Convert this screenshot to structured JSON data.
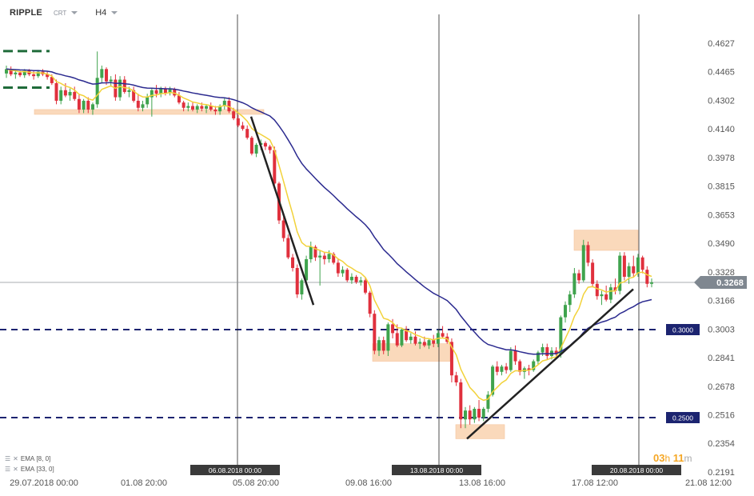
{
  "header": {
    "symbol": "RIPPLE",
    "source": "CRT",
    "timeframe": "H4"
  },
  "indicators": [
    {
      "label": "EMA",
      "params": "[8, 0]"
    },
    {
      "label": "EMA",
      "params": "[33, 0]"
    }
  ],
  "timer": {
    "hours": "03",
    "h": "h",
    "minutes": "11",
    "m": "m"
  },
  "colors": {
    "bull": "#3fa34d",
    "bear": "#e0303d",
    "ema_fast": "#f2d23a",
    "ema_slow": "#2b2a8f",
    "level_line": "#1c2470",
    "zone": "#fad3b0",
    "trendline": "#222222",
    "price_tag": "#7f8790"
  },
  "chart_data": {
    "type": "candlestick",
    "symbol": "RIPPLE",
    "timeframe": "H4",
    "y_ticks": [
      0.4627,
      0.4465,
      0.4302,
      0.414,
      0.3978,
      0.3815,
      0.3653,
      0.349,
      0.3328,
      0.3166,
      0.3003,
      0.2841,
      0.2678,
      0.2516,
      0.2354,
      0.2191
    ],
    "ylim": [
      0.2191,
      0.4627
    ],
    "x_tick_labels": [
      "29.07.2018  00:00",
      "01.08  20:00",
      "05.08  20:00",
      "09.08  16:00",
      "13.08  16:00",
      "17.08  12:00",
      "21.08  12:00"
    ],
    "vertical_markers": [
      "06.08.2018 00:00",
      "13.08.2018 00:00",
      "20.08.2018 00:00"
    ],
    "current_price": 0.3268,
    "horizontal_levels": [
      {
        "label": "0.3000",
        "value": 0.3
      },
      {
        "label": "0.2500",
        "value": 0.25
      }
    ],
    "guide_levels": [
      0.4582,
      0.4375
    ],
    "support_resistance_zones": [
      {
        "low": 0.4225,
        "high": 0.425
      },
      {
        "low": 0.282,
        "high": 0.292
      },
      {
        "low": 0.238,
        "high": 0.246
      },
      {
        "low": 0.345,
        "high": 0.3565
      }
    ],
    "trendlines": [
      {
        "from": 0.421,
        "to": 0.314
      },
      {
        "from": 0.238,
        "to": 0.323
      }
    ],
    "candles": [
      {
        "o": 0.4455,
        "h": 0.45,
        "l": 0.443,
        "c": 0.448
      },
      {
        "o": 0.448,
        "h": 0.4495,
        "l": 0.444,
        "c": 0.445
      },
      {
        "o": 0.445,
        "h": 0.4475,
        "l": 0.4425,
        "c": 0.446
      },
      {
        "o": 0.446,
        "h": 0.447,
        "l": 0.4435,
        "c": 0.4445
      },
      {
        "o": 0.4445,
        "h": 0.448,
        "l": 0.443,
        "c": 0.447
      },
      {
        "o": 0.447,
        "h": 0.448,
        "l": 0.444,
        "c": 0.445
      },
      {
        "o": 0.445,
        "h": 0.447,
        "l": 0.442,
        "c": 0.444
      },
      {
        "o": 0.444,
        "h": 0.4475,
        "l": 0.443,
        "c": 0.4465
      },
      {
        "o": 0.4465,
        "h": 0.448,
        "l": 0.444,
        "c": 0.445
      },
      {
        "o": 0.445,
        "h": 0.4465,
        "l": 0.442,
        "c": 0.4435
      },
      {
        "o": 0.4435,
        "h": 0.445,
        "l": 0.439,
        "c": 0.44
      },
      {
        "o": 0.44,
        "h": 0.442,
        "l": 0.428,
        "c": 0.43
      },
      {
        "o": 0.43,
        "h": 0.438,
        "l": 0.428,
        "c": 0.436
      },
      {
        "o": 0.436,
        "h": 0.44,
        "l": 0.432,
        "c": 0.433
      },
      {
        "o": 0.433,
        "h": 0.437,
        "l": 0.43,
        "c": 0.435
      },
      {
        "o": 0.435,
        "h": 0.438,
        "l": 0.43,
        "c": 0.431
      },
      {
        "o": 0.431,
        "h": 0.434,
        "l": 0.423,
        "c": 0.425
      },
      {
        "o": 0.425,
        "h": 0.431,
        "l": 0.423,
        "c": 0.43
      },
      {
        "o": 0.43,
        "h": 0.432,
        "l": 0.423,
        "c": 0.425
      },
      {
        "o": 0.425,
        "h": 0.429,
        "l": 0.422,
        "c": 0.428
      },
      {
        "o": 0.428,
        "h": 0.458,
        "l": 0.426,
        "c": 0.443
      },
      {
        "o": 0.443,
        "h": 0.45,
        "l": 0.44,
        "c": 0.448
      },
      {
        "o": 0.448,
        "h": 0.449,
        "l": 0.439,
        "c": 0.441
      },
      {
        "o": 0.441,
        "h": 0.444,
        "l": 0.438,
        "c": 0.442
      },
      {
        "o": 0.442,
        "h": 0.445,
        "l": 0.43,
        "c": 0.432
      },
      {
        "o": 0.432,
        "h": 0.444,
        "l": 0.43,
        "c": 0.442
      },
      {
        "o": 0.442,
        "h": 0.444,
        "l": 0.434,
        "c": 0.435
      },
      {
        "o": 0.435,
        "h": 0.438,
        "l": 0.432,
        "c": 0.436
      },
      {
        "o": 0.436,
        "h": 0.438,
        "l": 0.429,
        "c": 0.43
      },
      {
        "o": 0.43,
        "h": 0.434,
        "l": 0.424,
        "c": 0.426
      },
      {
        "o": 0.426,
        "h": 0.43,
        "l": 0.424,
        "c": 0.428
      },
      {
        "o": 0.428,
        "h": 0.434,
        "l": 0.426,
        "c": 0.432
      },
      {
        "o": 0.432,
        "h": 0.437,
        "l": 0.421,
        "c": 0.436
      },
      {
        "o": 0.436,
        "h": 0.439,
        "l": 0.432,
        "c": 0.434
      },
      {
        "o": 0.434,
        "h": 0.438,
        "l": 0.432,
        "c": 0.437
      },
      {
        "o": 0.437,
        "h": 0.438,
        "l": 0.433,
        "c": 0.4345
      },
      {
        "o": 0.4345,
        "h": 0.438,
        "l": 0.433,
        "c": 0.4365
      },
      {
        "o": 0.4365,
        "h": 0.4375,
        "l": 0.432,
        "c": 0.433
      },
      {
        "o": 0.433,
        "h": 0.435,
        "l": 0.428,
        "c": 0.429
      },
      {
        "o": 0.429,
        "h": 0.43,
        "l": 0.424,
        "c": 0.426
      },
      {
        "o": 0.426,
        "h": 0.429,
        "l": 0.424,
        "c": 0.427
      },
      {
        "o": 0.427,
        "h": 0.429,
        "l": 0.424,
        "c": 0.425
      },
      {
        "o": 0.425,
        "h": 0.428,
        "l": 0.423,
        "c": 0.427
      },
      {
        "o": 0.427,
        "h": 0.429,
        "l": 0.424,
        "c": 0.4255
      },
      {
        "o": 0.4255,
        "h": 0.428,
        "l": 0.423,
        "c": 0.427
      },
      {
        "o": 0.427,
        "h": 0.429,
        "l": 0.424,
        "c": 0.425
      },
      {
        "o": 0.425,
        "h": 0.427,
        "l": 0.422,
        "c": 0.424
      },
      {
        "o": 0.424,
        "h": 0.428,
        "l": 0.422,
        "c": 0.427
      },
      {
        "o": 0.427,
        "h": 0.432,
        "l": 0.425,
        "c": 0.43
      },
      {
        "o": 0.43,
        "h": 0.432,
        "l": 0.423,
        "c": 0.424
      },
      {
        "o": 0.424,
        "h": 0.426,
        "l": 0.419,
        "c": 0.42
      },
      {
        "o": 0.42,
        "h": 0.422,
        "l": 0.415,
        "c": 0.416
      },
      {
        "o": 0.416,
        "h": 0.418,
        "l": 0.413,
        "c": 0.414
      },
      {
        "o": 0.414,
        "h": 0.416,
        "l": 0.408,
        "c": 0.409
      },
      {
        "o": 0.409,
        "h": 0.41,
        "l": 0.399,
        "c": 0.4
      },
      {
        "o": 0.4,
        "h": 0.406,
        "l": 0.398,
        "c": 0.405
      },
      {
        "o": 0.405,
        "h": 0.408,
        "l": 0.402,
        "c": 0.406
      },
      {
        "o": 0.406,
        "h": 0.407,
        "l": 0.402,
        "c": 0.404
      },
      {
        "o": 0.404,
        "h": 0.405,
        "l": 0.4,
        "c": 0.402
      },
      {
        "o": 0.402,
        "h": 0.404,
        "l": 0.382,
        "c": 0.383
      },
      {
        "o": 0.383,
        "h": 0.384,
        "l": 0.36,
        "c": 0.362
      },
      {
        "o": 0.362,
        "h": 0.365,
        "l": 0.35,
        "c": 0.352
      },
      {
        "o": 0.352,
        "h": 0.354,
        "l": 0.34,
        "c": 0.341
      },
      {
        "o": 0.341,
        "h": 0.343,
        "l": 0.333,
        "c": 0.335
      },
      {
        "o": 0.335,
        "h": 0.337,
        "l": 0.318,
        "c": 0.32
      },
      {
        "o": 0.32,
        "h": 0.329,
        "l": 0.317,
        "c": 0.328
      },
      {
        "o": 0.328,
        "h": 0.342,
        "l": 0.326,
        "c": 0.34
      },
      {
        "o": 0.34,
        "h": 0.35,
        "l": 0.338,
        "c": 0.347
      },
      {
        "o": 0.347,
        "h": 0.348,
        "l": 0.339,
        "c": 0.341
      },
      {
        "o": 0.341,
        "h": 0.345,
        "l": 0.325,
        "c": 0.342
      },
      {
        "o": 0.342,
        "h": 0.344,
        "l": 0.337,
        "c": 0.34
      },
      {
        "o": 0.34,
        "h": 0.345,
        "l": 0.338,
        "c": 0.343
      },
      {
        "o": 0.343,
        "h": 0.344,
        "l": 0.337,
        "c": 0.338
      },
      {
        "o": 0.338,
        "h": 0.34,
        "l": 0.33,
        "c": 0.332
      },
      {
        "o": 0.332,
        "h": 0.336,
        "l": 0.33,
        "c": 0.334
      },
      {
        "o": 0.334,
        "h": 0.335,
        "l": 0.327,
        "c": 0.328
      },
      {
        "o": 0.328,
        "h": 0.332,
        "l": 0.326,
        "c": 0.33
      },
      {
        "o": 0.33,
        "h": 0.331,
        "l": 0.326,
        "c": 0.327
      },
      {
        "o": 0.327,
        "h": 0.33,
        "l": 0.325,
        "c": 0.328
      },
      {
        "o": 0.328,
        "h": 0.33,
        "l": 0.32,
        "c": 0.321
      },
      {
        "o": 0.321,
        "h": 0.322,
        "l": 0.307,
        "c": 0.309
      },
      {
        "o": 0.309,
        "h": 0.311,
        "l": 0.286,
        "c": 0.288
      },
      {
        "o": 0.288,
        "h": 0.296,
        "l": 0.285,
        "c": 0.294
      },
      {
        "o": 0.294,
        "h": 0.296,
        "l": 0.286,
        "c": 0.288
      },
      {
        "o": 0.288,
        "h": 0.304,
        "l": 0.285,
        "c": 0.303
      },
      {
        "o": 0.303,
        "h": 0.306,
        "l": 0.295,
        "c": 0.298
      },
      {
        "o": 0.298,
        "h": 0.303,
        "l": 0.29,
        "c": 0.291
      },
      {
        "o": 0.291,
        "h": 0.301,
        "l": 0.29,
        "c": 0.3
      },
      {
        "o": 0.3,
        "h": 0.302,
        "l": 0.293,
        "c": 0.294
      },
      {
        "o": 0.294,
        "h": 0.298,
        "l": 0.292,
        "c": 0.296
      },
      {
        "o": 0.296,
        "h": 0.299,
        "l": 0.291,
        "c": 0.292
      },
      {
        "o": 0.292,
        "h": 0.295,
        "l": 0.289,
        "c": 0.293
      },
      {
        "o": 0.293,
        "h": 0.296,
        "l": 0.29,
        "c": 0.291
      },
      {
        "o": 0.291,
        "h": 0.295,
        "l": 0.289,
        "c": 0.294
      },
      {
        "o": 0.294,
        "h": 0.297,
        "l": 0.29,
        "c": 0.292
      },
      {
        "o": 0.292,
        "h": 0.3,
        "l": 0.29,
        "c": 0.298
      },
      {
        "o": 0.298,
        "h": 0.302,
        "l": 0.295,
        "c": 0.296
      },
      {
        "o": 0.296,
        "h": 0.298,
        "l": 0.292,
        "c": 0.293
      },
      {
        "o": 0.293,
        "h": 0.295,
        "l": 0.27,
        "c": 0.274
      },
      {
        "o": 0.274,
        "h": 0.276,
        "l": 0.268,
        "c": 0.27
      },
      {
        "o": 0.27,
        "h": 0.272,
        "l": 0.244,
        "c": 0.249
      },
      {
        "o": 0.249,
        "h": 0.256,
        "l": 0.244,
        "c": 0.254
      },
      {
        "o": 0.254,
        "h": 0.257,
        "l": 0.246,
        "c": 0.249
      },
      {
        "o": 0.249,
        "h": 0.256,
        "l": 0.247,
        "c": 0.255
      },
      {
        "o": 0.255,
        "h": 0.26,
        "l": 0.248,
        "c": 0.25
      },
      {
        "o": 0.25,
        "h": 0.256,
        "l": 0.248,
        "c": 0.255
      },
      {
        "o": 0.255,
        "h": 0.265,
        "l": 0.253,
        "c": 0.263
      },
      {
        "o": 0.263,
        "h": 0.28,
        "l": 0.262,
        "c": 0.279
      },
      {
        "o": 0.279,
        "h": 0.282,
        "l": 0.274,
        "c": 0.276
      },
      {
        "o": 0.276,
        "h": 0.28,
        "l": 0.274,
        "c": 0.279
      },
      {
        "o": 0.279,
        "h": 0.281,
        "l": 0.275,
        "c": 0.277
      },
      {
        "o": 0.277,
        "h": 0.29,
        "l": 0.276,
        "c": 0.288
      },
      {
        "o": 0.288,
        "h": 0.291,
        "l": 0.28,
        "c": 0.282
      },
      {
        "o": 0.282,
        "h": 0.283,
        "l": 0.274,
        "c": 0.276
      },
      {
        "o": 0.276,
        "h": 0.279,
        "l": 0.272,
        "c": 0.278
      },
      {
        "o": 0.278,
        "h": 0.28,
        "l": 0.274,
        "c": 0.277
      },
      {
        "o": 0.277,
        "h": 0.283,
        "l": 0.276,
        "c": 0.282
      },
      {
        "o": 0.282,
        "h": 0.288,
        "l": 0.28,
        "c": 0.287
      },
      {
        "o": 0.287,
        "h": 0.292,
        "l": 0.285,
        "c": 0.29
      },
      {
        "o": 0.29,
        "h": 0.292,
        "l": 0.283,
        "c": 0.285
      },
      {
        "o": 0.285,
        "h": 0.29,
        "l": 0.283,
        "c": 0.288
      },
      {
        "o": 0.288,
        "h": 0.29,
        "l": 0.285,
        "c": 0.286
      },
      {
        "o": 0.286,
        "h": 0.308,
        "l": 0.284,
        "c": 0.307
      },
      {
        "o": 0.307,
        "h": 0.316,
        "l": 0.304,
        "c": 0.314
      },
      {
        "o": 0.314,
        "h": 0.322,
        "l": 0.31,
        "c": 0.32
      },
      {
        "o": 0.32,
        "h": 0.335,
        "l": 0.318,
        "c": 0.332
      },
      {
        "o": 0.332,
        "h": 0.334,
        "l": 0.326,
        "c": 0.328
      },
      {
        "o": 0.328,
        "h": 0.351,
        "l": 0.327,
        "c": 0.348
      },
      {
        "o": 0.348,
        "h": 0.35,
        "l": 0.336,
        "c": 0.338
      },
      {
        "o": 0.338,
        "h": 0.34,
        "l": 0.324,
        "c": 0.326
      },
      {
        "o": 0.326,
        "h": 0.328,
        "l": 0.317,
        "c": 0.319
      },
      {
        "o": 0.319,
        "h": 0.322,
        "l": 0.314,
        "c": 0.32
      },
      {
        "o": 0.32,
        "h": 0.325,
        "l": 0.316,
        "c": 0.317
      },
      {
        "o": 0.317,
        "h": 0.326,
        "l": 0.315,
        "c": 0.324
      },
      {
        "o": 0.324,
        "h": 0.329,
        "l": 0.32,
        "c": 0.322
      },
      {
        "o": 0.322,
        "h": 0.344,
        "l": 0.32,
        "c": 0.342
      },
      {
        "o": 0.342,
        "h": 0.344,
        "l": 0.328,
        "c": 0.33
      },
      {
        "o": 0.33,
        "h": 0.338,
        "l": 0.326,
        "c": 0.336
      },
      {
        "o": 0.336,
        "h": 0.342,
        "l": 0.33,
        "c": 0.332
      },
      {
        "o": 0.332,
        "h": 0.343,
        "l": 0.33,
        "c": 0.341
      },
      {
        "o": 0.341,
        "h": 0.342,
        "l": 0.332,
        "c": 0.334
      },
      {
        "o": 0.334,
        "h": 0.336,
        "l": 0.324,
        "c": 0.326
      },
      {
        "o": 0.326,
        "h": 0.329,
        "l": 0.324,
        "c": 0.3268
      }
    ]
  }
}
